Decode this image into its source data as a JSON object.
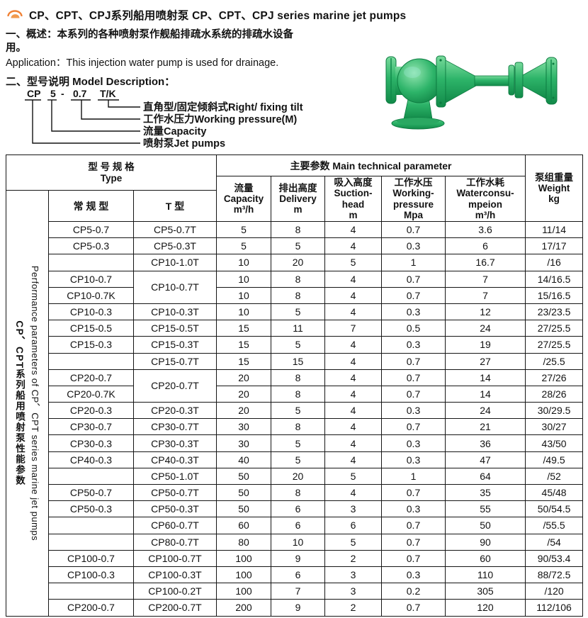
{
  "colors": {
    "pump_green": "#2db469",
    "logo_orange": "#f08236",
    "table_border": "#151515",
    "text": "#121212"
  },
  "header": {
    "title": "CP、CPT、CPJ系列船用喷射泵 CP、CPT、CPJ series marine jet pumps",
    "logo_icon": "arc-sun-icon"
  },
  "overview": {
    "line1": "一、概述：本系列的各种喷射泵作舰船排疏水系统的排疏水设备",
    "line2": "用。",
    "application": "Application：This injection water pump is used for drainage."
  },
  "model_description": {
    "heading": "二、型号说明 Model Description：",
    "code_parts": [
      "CP",
      "5",
      "-",
      "0.7",
      "T/K"
    ],
    "labels": [
      "直角型/固定倾斜式Right/ fixing tilt",
      "工作水压力Working pressure(M)",
      "流量Capacity",
      "喷射泵Jet pumps"
    ]
  },
  "pump_image": {
    "name": "green-marine-jet-pump"
  },
  "table": {
    "header": {
      "type_group_zh": "型 号 规 格",
      "type_group_en": "Type",
      "main_group": "主要参数 Main technical parameter",
      "weight": [
        "泵组重量",
        "Weight",
        "kg"
      ],
      "normal_col": "常 规 型",
      "t_col": "T 型",
      "capacity": [
        "流量",
        "Capacity",
        "m³/h"
      ],
      "delivery": [
        "排出高度",
        "Delivery",
        "m"
      ],
      "suction": [
        "吸入高度",
        "Suction-",
        "head",
        "m"
      ],
      "pressure": [
        "工作水压",
        "Working-",
        "pressure",
        "Mpa"
      ],
      "water": [
        "工作水耗",
        "Waterconsu-",
        "mpeion",
        "m³/h"
      ]
    },
    "side_label_en": "Performance parameters of CP、CPT series marine jet pumps",
    "side_label_zh": "CP、CPT系列船用喷射泵性能参数",
    "t_rowspan_rows": [
      3,
      9
    ],
    "rows": [
      [
        "CP5-0.7",
        "CP5-0.7T",
        "5",
        "8",
        "4",
        "0.7",
        "3.6",
        "11/14"
      ],
      [
        "CP5-0.3",
        "CP5-0.3T",
        "5",
        "5",
        "4",
        "0.3",
        "6",
        "17/17"
      ],
      [
        "",
        "CP10-1.0T",
        "10",
        "20",
        "5",
        "1",
        "16.7",
        "/16"
      ],
      [
        "CP10-0.7",
        "CP10-0.7T",
        "10",
        "8",
        "4",
        "0.7",
        "7",
        "14/16.5"
      ],
      [
        "CP10-0.7K",
        null,
        "10",
        "8",
        "4",
        "0.7",
        "7",
        "15/16.5"
      ],
      [
        "CP10-0.3",
        "CP10-0.3T",
        "10",
        "5",
        "4",
        "0.3",
        "12",
        "23/23.5"
      ],
      [
        "CP15-0.5",
        "CP15-0.5T",
        "15",
        "11",
        "7",
        "0.5",
        "24",
        "27/25.5"
      ],
      [
        "CP15-0.3",
        "CP15-0.3T",
        "15",
        "5",
        "4",
        "0.3",
        "19",
        "27/25.5"
      ],
      [
        "",
        "CP15-0.7T",
        "15",
        "15",
        "4",
        "0.7",
        "27",
        "/25.5"
      ],
      [
        "CP20-0.7",
        "CP20-0.7T",
        "20",
        "8",
        "4",
        "0.7",
        "14",
        "27/26"
      ],
      [
        "CP20-0.7K",
        null,
        "20",
        "8",
        "4",
        "0.7",
        "14",
        "28/26"
      ],
      [
        "CP20-0.3",
        "CP20-0.3T",
        "20",
        "5",
        "4",
        "0.3",
        "24",
        "30/29.5"
      ],
      [
        "CP30-0.7",
        "CP30-0.7T",
        "30",
        "8",
        "4",
        "0.7",
        "21",
        "30/27"
      ],
      [
        "CP30-0.3",
        "CP30-0.3T",
        "30",
        "5",
        "4",
        "0.3",
        "36",
        "43/50"
      ],
      [
        "CP40-0.3",
        "CP40-0.3T",
        "40",
        "5",
        "4",
        "0.3",
        "47",
        "/49.5"
      ],
      [
        "",
        "CP50-1.0T",
        "50",
        "20",
        "5",
        "1",
        "64",
        "/52"
      ],
      [
        "CP50-0.7",
        "CP50-0.7T",
        "50",
        "8",
        "4",
        "0.7",
        "35",
        "45/48"
      ],
      [
        "CP50-0.3",
        "CP50-0.3T",
        "50",
        "6",
        "3",
        "0.3",
        "55",
        "50/54.5"
      ],
      [
        "",
        "CP60-0.7T",
        "60",
        "6",
        "6",
        "0.7",
        "50",
        "/55.5"
      ],
      [
        "",
        "CP80-0.7T",
        "80",
        "10",
        "5",
        "0.7",
        "90",
        "/54"
      ],
      [
        "CP100-0.7",
        "CP100-0.7T",
        "100",
        "9",
        "2",
        "0.7",
        "60",
        "90/53.4"
      ],
      [
        "CP100-0.3",
        "CP100-0.3T",
        "100",
        "6",
        "3",
        "0.3",
        "110",
        "88/72.5"
      ],
      [
        "",
        "CP100-0.2T",
        "100",
        "7",
        "3",
        "0.2",
        "305",
        "/120"
      ],
      [
        "CP200-0.7",
        "CP200-0.7T",
        "200",
        "9",
        "2",
        "0.7",
        "120",
        "112/106"
      ]
    ]
  }
}
